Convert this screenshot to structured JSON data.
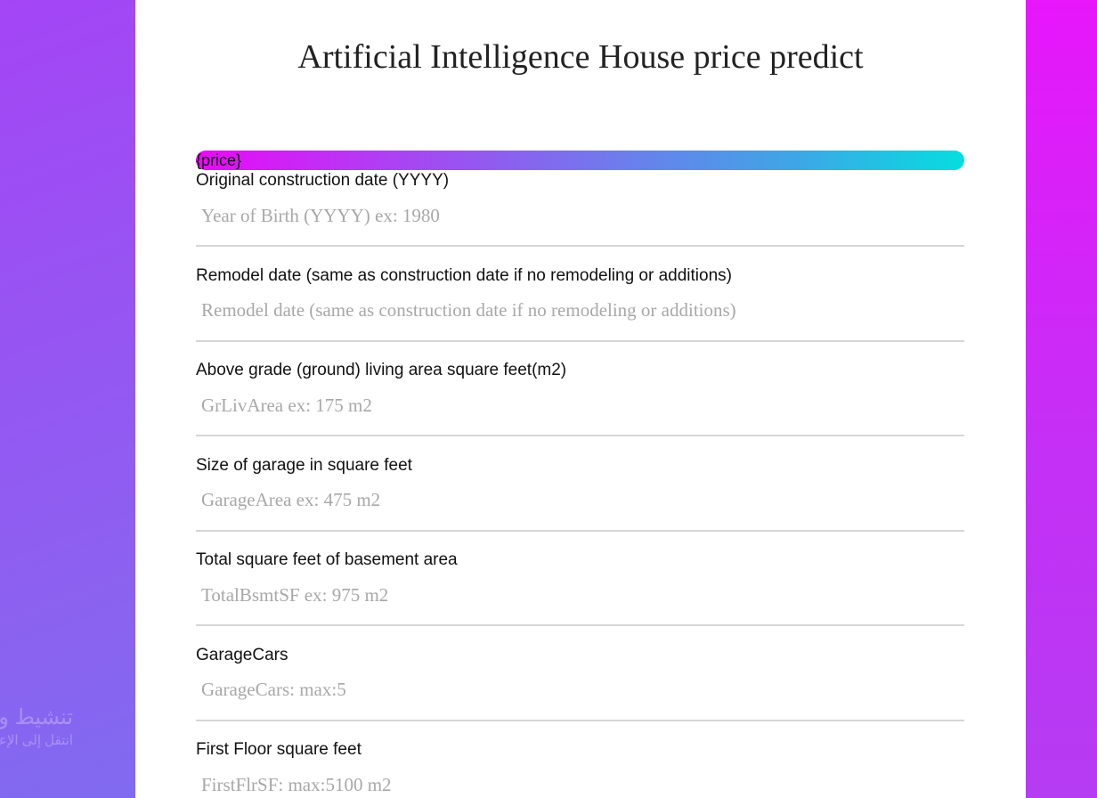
{
  "page": {
    "title": "Artificial Intelligence House price predict",
    "price_placeholder": "{price}"
  },
  "watermark": {
    "title": "تنشيط ويندوز",
    "subtitle": "انتقل إلى الإعدادات لتنشيط ويندوز."
  },
  "fields": [
    {
      "label": "Original construction date (YYYY)",
      "placeholder": "Year of Birth (YYYY) ex: 1980",
      "value": ""
    },
    {
      "label": "Remodel date (same as construction date if no remodeling or additions)",
      "placeholder": "Remodel date (same as construction date if no remodeling or additions)",
      "value": ""
    },
    {
      "label": "Above grade (ground) living area square feet(m2)",
      "placeholder": "GrLivArea ex: 175 m2",
      "value": ""
    },
    {
      "label": "Size of garage in square feet",
      "placeholder": "GarageArea ex: 475 m2",
      "value": ""
    },
    {
      "label": "Total square feet of basement area",
      "placeholder": "TotalBsmtSF ex: 975 m2",
      "value": ""
    },
    {
      "label": "GarageCars",
      "placeholder": "GarageCars: max:5",
      "value": ""
    },
    {
      "label": "First Floor square feet",
      "placeholder": "FirstFlrSF: max:5100 m2",
      "value": ""
    }
  ],
  "colors": {
    "background_start": "#a445f5",
    "background_end": "#6e78ee",
    "accent_gradient_start": "#eb08f9",
    "accent_gradient_end": "#06dde0",
    "card": "#ffffff",
    "input_underline": "#d6d6d6",
    "placeholder": "#a8a8a8"
  }
}
